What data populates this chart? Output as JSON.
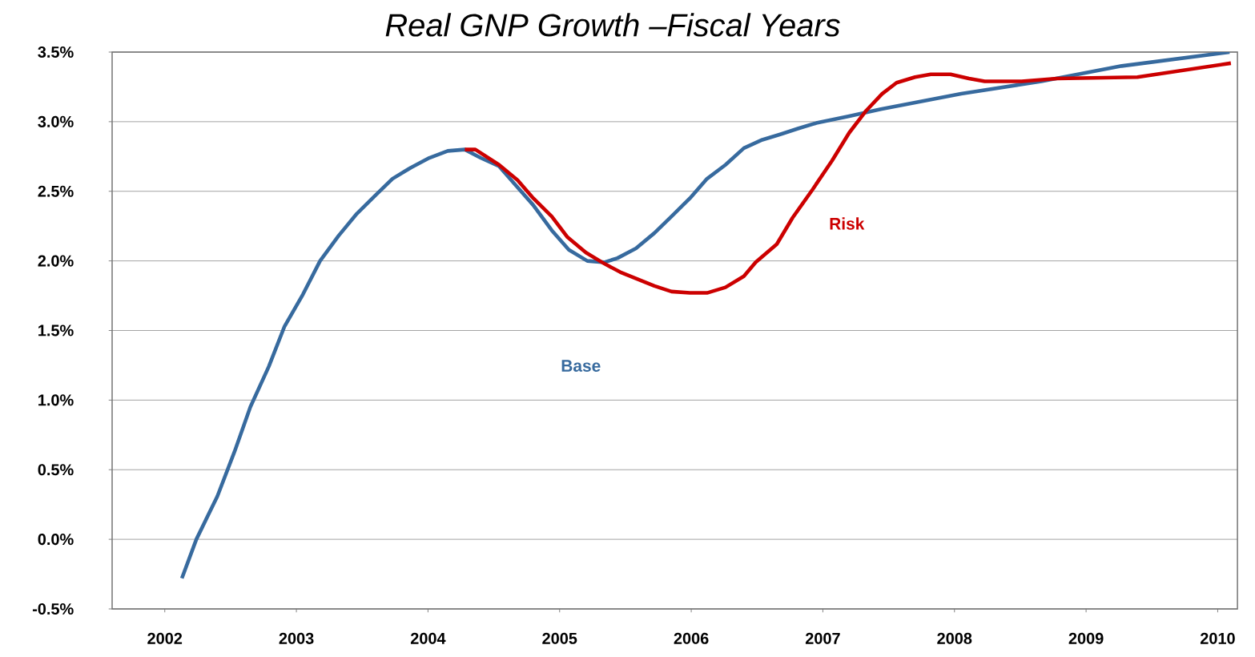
{
  "chart_data": {
    "type": "line",
    "title": "Real GNP Growth –Fiscal Years",
    "xlim": [
      2001.6,
      2010.15
    ],
    "xticks": [
      2002,
      2003,
      2004,
      2005,
      2006,
      2007,
      2008,
      2009,
      2010
    ],
    "ylim": [
      -0.5,
      3.5
    ],
    "yticks": [
      {
        "value": -0.5,
        "label": "-0.5%"
      },
      {
        "value": 0,
        "label": "0.0%"
      },
      {
        "value": 0.5,
        "label": "0.5%"
      },
      {
        "value": 1,
        "label": "1.0%"
      },
      {
        "value": 1.5,
        "label": "1.5%"
      },
      {
        "value": 2,
        "label": "2.0%"
      },
      {
        "value": 2.5,
        "label": "2.5%"
      },
      {
        "value": 3,
        "label": "3.0%"
      },
      {
        "value": 3.5,
        "label": "3.5%"
      }
    ],
    "grid": "y",
    "legend": false,
    "marker": "none",
    "line_style": "solid",
    "series": [
      {
        "name": "Base",
        "color": "#376a9e",
        "x": [
          2002.13,
          2002.24,
          2002.4,
          2002.53,
          2002.65,
          2002.79,
          2002.91,
          2003.05,
          2003.18,
          2003.32,
          2003.46,
          2003.6,
          2003.73,
          2003.87,
          2004.01,
          2004.15,
          2004.28,
          2004.4,
          2004.54,
          2004.66,
          2004.8,
          2004.94,
          2005.07,
          2005.21,
          2005.34,
          2005.44,
          2005.58,
          2005.72,
          2005.85,
          2005.99,
          2006.12,
          2006.26,
          2006.4,
          2006.54,
          2006.68,
          2006.81,
          2006.95,
          2007.2,
          2007.44,
          2008.05,
          2008.66,
          2009.27,
          2010.09
        ],
        "values": [
          -0.28,
          0.0,
          0.31,
          0.63,
          0.95,
          1.24,
          1.53,
          1.76,
          2.0,
          2.18,
          2.34,
          2.47,
          2.59,
          2.67,
          2.74,
          2.79,
          2.8,
          2.74,
          2.68,
          2.55,
          2.4,
          2.22,
          2.08,
          2.0,
          1.99,
          2.02,
          2.09,
          2.2,
          2.32,
          2.45,
          2.59,
          2.69,
          2.81,
          2.87,
          2.91,
          2.95,
          2.99,
          3.04,
          3.09,
          3.2,
          3.29,
          3.4,
          3.5
        ]
      },
      {
        "name": "Risk",
        "color": "#cc0000",
        "x": [
          2004.28,
          2004.36,
          2004.54,
          2004.68,
          2004.8,
          2004.94,
          2005.06,
          2005.2,
          2005.34,
          2005.46,
          2005.59,
          2005.72,
          2005.85,
          2005.99,
          2006.12,
          2006.26,
          2006.4,
          2006.49,
          2006.65,
          2006.77,
          2006.92,
          2007.07,
          2007.2,
          2007.33,
          2007.45,
          2007.56,
          2007.7,
          2007.82,
          2007.97,
          2008.11,
          2008.23,
          2008.51,
          2008.78,
          2009.39,
          2010.1
        ],
        "values": [
          2.8,
          2.8,
          2.69,
          2.58,
          2.45,
          2.32,
          2.17,
          2.06,
          1.98,
          1.92,
          1.87,
          1.82,
          1.78,
          1.77,
          1.77,
          1.81,
          1.89,
          1.99,
          2.12,
          2.31,
          2.51,
          2.72,
          2.92,
          3.08,
          3.2,
          3.28,
          3.32,
          3.34,
          3.34,
          3.31,
          3.29,
          3.29,
          3.31,
          3.32,
          3.42
        ]
      }
    ]
  }
}
